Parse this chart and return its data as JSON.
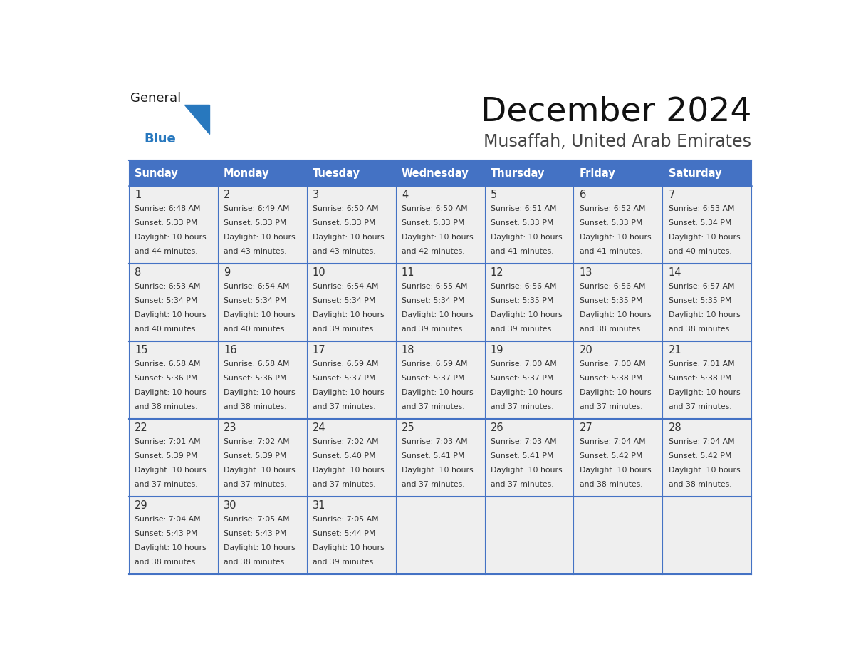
{
  "title": "December 2024",
  "subtitle": "Musaffah, United Arab Emirates",
  "days_of_week": [
    "Sunday",
    "Monday",
    "Tuesday",
    "Wednesday",
    "Thursday",
    "Friday",
    "Saturday"
  ],
  "header_bg": "#4472C4",
  "header_text": "#FFFFFF",
  "cell_bg": "#EFEFEF",
  "cell_border": "#4472C4",
  "row_border": "#4472C4",
  "day_num_color": "#333333",
  "text_color": "#333333",
  "title_color": "#111111",
  "subtitle_color": "#444444",
  "generalblue_black": "#1a1a1a",
  "generalblue_blue": "#2878BE",
  "calendar": [
    [
      {
        "day": 1,
        "sunrise": "6:48 AM",
        "sunset": "5:33 PM",
        "daylight_h": "10 hours",
        "daylight_m": "44 minutes."
      },
      {
        "day": 2,
        "sunrise": "6:49 AM",
        "sunset": "5:33 PM",
        "daylight_h": "10 hours",
        "daylight_m": "43 minutes."
      },
      {
        "day": 3,
        "sunrise": "6:50 AM",
        "sunset": "5:33 PM",
        "daylight_h": "10 hours",
        "daylight_m": "43 minutes."
      },
      {
        "day": 4,
        "sunrise": "6:50 AM",
        "sunset": "5:33 PM",
        "daylight_h": "10 hours",
        "daylight_m": "42 minutes."
      },
      {
        "day": 5,
        "sunrise": "6:51 AM",
        "sunset": "5:33 PM",
        "daylight_h": "10 hours",
        "daylight_m": "41 minutes."
      },
      {
        "day": 6,
        "sunrise": "6:52 AM",
        "sunset": "5:33 PM",
        "daylight_h": "10 hours",
        "daylight_m": "41 minutes."
      },
      {
        "day": 7,
        "sunrise": "6:53 AM",
        "sunset": "5:34 PM",
        "daylight_h": "10 hours",
        "daylight_m": "40 minutes."
      }
    ],
    [
      {
        "day": 8,
        "sunrise": "6:53 AM",
        "sunset": "5:34 PM",
        "daylight_h": "10 hours",
        "daylight_m": "40 minutes."
      },
      {
        "day": 9,
        "sunrise": "6:54 AM",
        "sunset": "5:34 PM",
        "daylight_h": "10 hours",
        "daylight_m": "40 minutes."
      },
      {
        "day": 10,
        "sunrise": "6:54 AM",
        "sunset": "5:34 PM",
        "daylight_h": "10 hours",
        "daylight_m": "39 minutes."
      },
      {
        "day": 11,
        "sunrise": "6:55 AM",
        "sunset": "5:34 PM",
        "daylight_h": "10 hours",
        "daylight_m": "39 minutes."
      },
      {
        "day": 12,
        "sunrise": "6:56 AM",
        "sunset": "5:35 PM",
        "daylight_h": "10 hours",
        "daylight_m": "39 minutes."
      },
      {
        "day": 13,
        "sunrise": "6:56 AM",
        "sunset": "5:35 PM",
        "daylight_h": "10 hours",
        "daylight_m": "38 minutes."
      },
      {
        "day": 14,
        "sunrise": "6:57 AM",
        "sunset": "5:35 PM",
        "daylight_h": "10 hours",
        "daylight_m": "38 minutes."
      }
    ],
    [
      {
        "day": 15,
        "sunrise": "6:58 AM",
        "sunset": "5:36 PM",
        "daylight_h": "10 hours",
        "daylight_m": "38 minutes."
      },
      {
        "day": 16,
        "sunrise": "6:58 AM",
        "sunset": "5:36 PM",
        "daylight_h": "10 hours",
        "daylight_m": "38 minutes."
      },
      {
        "day": 17,
        "sunrise": "6:59 AM",
        "sunset": "5:37 PM",
        "daylight_h": "10 hours",
        "daylight_m": "37 minutes."
      },
      {
        "day": 18,
        "sunrise": "6:59 AM",
        "sunset": "5:37 PM",
        "daylight_h": "10 hours",
        "daylight_m": "37 minutes."
      },
      {
        "day": 19,
        "sunrise": "7:00 AM",
        "sunset": "5:37 PM",
        "daylight_h": "10 hours",
        "daylight_m": "37 minutes."
      },
      {
        "day": 20,
        "sunrise": "7:00 AM",
        "sunset": "5:38 PM",
        "daylight_h": "10 hours",
        "daylight_m": "37 minutes."
      },
      {
        "day": 21,
        "sunrise": "7:01 AM",
        "sunset": "5:38 PM",
        "daylight_h": "10 hours",
        "daylight_m": "37 minutes."
      }
    ],
    [
      {
        "day": 22,
        "sunrise": "7:01 AM",
        "sunset": "5:39 PM",
        "daylight_h": "10 hours",
        "daylight_m": "37 minutes."
      },
      {
        "day": 23,
        "sunrise": "7:02 AM",
        "sunset": "5:39 PM",
        "daylight_h": "10 hours",
        "daylight_m": "37 minutes."
      },
      {
        "day": 24,
        "sunrise": "7:02 AM",
        "sunset": "5:40 PM",
        "daylight_h": "10 hours",
        "daylight_m": "37 minutes."
      },
      {
        "day": 25,
        "sunrise": "7:03 AM",
        "sunset": "5:41 PM",
        "daylight_h": "10 hours",
        "daylight_m": "37 minutes."
      },
      {
        "day": 26,
        "sunrise": "7:03 AM",
        "sunset": "5:41 PM",
        "daylight_h": "10 hours",
        "daylight_m": "37 minutes."
      },
      {
        "day": 27,
        "sunrise": "7:04 AM",
        "sunset": "5:42 PM",
        "daylight_h": "10 hours",
        "daylight_m": "38 minutes."
      },
      {
        "day": 28,
        "sunrise": "7:04 AM",
        "sunset": "5:42 PM",
        "daylight_h": "10 hours",
        "daylight_m": "38 minutes."
      }
    ],
    [
      {
        "day": 29,
        "sunrise": "7:04 AM",
        "sunset": "5:43 PM",
        "daylight_h": "10 hours",
        "daylight_m": "38 minutes."
      },
      {
        "day": 30,
        "sunrise": "7:05 AM",
        "sunset": "5:43 PM",
        "daylight_h": "10 hours",
        "daylight_m": "38 minutes."
      },
      {
        "day": 31,
        "sunrise": "7:05 AM",
        "sunset": "5:44 PM",
        "daylight_h": "10 hours",
        "daylight_m": "39 minutes."
      },
      null,
      null,
      null,
      null
    ]
  ]
}
